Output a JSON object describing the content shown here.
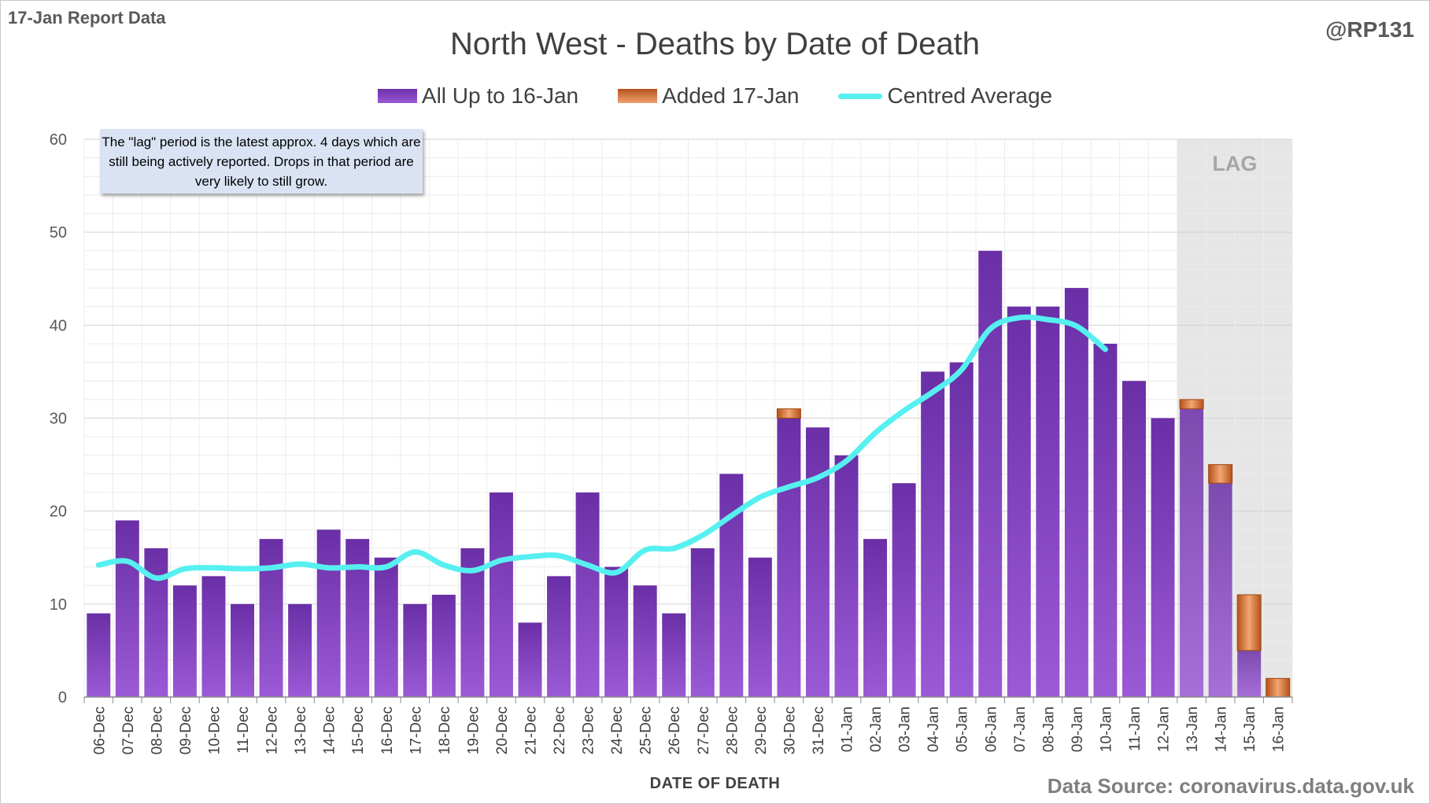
{
  "header": {
    "report_label": "17-Jan Report Data",
    "author": "@RP131"
  },
  "note": "The \"lag\" period is the latest approx. 4 days which are still being actively reported. Drops in that period are very likely to still grow.",
  "source": "Data Source: coronavirus.data.gov.uk",
  "chart_data": {
    "type": "bar",
    "stacked": true,
    "title": "North West - Deaths by Date of Death",
    "xlabel": "DATE OF DEATH",
    "ylabel": "",
    "ylim": [
      0,
      60
    ],
    "yticks": [
      0,
      10,
      20,
      30,
      40,
      50,
      60
    ],
    "grid": true,
    "legend_position": "top",
    "categories": [
      "06-Dec",
      "07-Dec",
      "08-Dec",
      "09-Dec",
      "10-Dec",
      "11-Dec",
      "12-Dec",
      "13-Dec",
      "14-Dec",
      "15-Dec",
      "16-Dec",
      "17-Dec",
      "18-Dec",
      "19-Dec",
      "20-Dec",
      "21-Dec",
      "22-Dec",
      "23-Dec",
      "24-Dec",
      "25-Dec",
      "26-Dec",
      "27-Dec",
      "28-Dec",
      "29-Dec",
      "30-Dec",
      "31-Dec",
      "01-Jan",
      "02-Jan",
      "03-Jan",
      "04-Jan",
      "05-Jan",
      "06-Jan",
      "07-Jan",
      "08-Jan",
      "09-Jan",
      "10-Jan",
      "11-Jan",
      "12-Jan",
      "13-Jan",
      "14-Jan",
      "15-Jan",
      "16-Jan"
    ],
    "series": [
      {
        "name": "All Up to 16-Jan",
        "color": "#7b3cc0",
        "values": [
          9,
          19,
          16,
          12,
          13,
          10,
          17,
          10,
          18,
          17,
          15,
          10,
          11,
          16,
          22,
          8,
          13,
          22,
          14,
          12,
          9,
          16,
          24,
          15,
          30,
          29,
          26,
          17,
          23,
          35,
          36,
          48,
          42,
          42,
          44,
          38,
          34,
          30,
          31,
          23,
          5,
          0
        ]
      },
      {
        "name": "Added 17-Jan",
        "color": "#e07b3a",
        "values": [
          0,
          0,
          0,
          0,
          0,
          0,
          0,
          0,
          0,
          0,
          0,
          0,
          0,
          0,
          0,
          0,
          0,
          0,
          0,
          0,
          0,
          0,
          0,
          0,
          1,
          0,
          0,
          0,
          0,
          0,
          0,
          0,
          0,
          0,
          0,
          0,
          0,
          0,
          1,
          2,
          6,
          2
        ]
      },
      {
        "name": "Centred Average",
        "type": "line",
        "color": "#57f0f0",
        "values": [
          14.2,
          14.6,
          12.8,
          13.8,
          13.9,
          13.8,
          13.9,
          14.3,
          13.9,
          14.0,
          14.0,
          15.6,
          14.2,
          13.6,
          14.7,
          15.1,
          15.2,
          14.2,
          13.4,
          15.8,
          16.0,
          17.4,
          19.5,
          21.5,
          22.6,
          23.6,
          25.4,
          28.4,
          30.8,
          32.8,
          35.2,
          39.6,
          40.8,
          40.6,
          39.9,
          37.4,
          null,
          null,
          null,
          null,
          null,
          null
        ]
      }
    ],
    "lag_region": {
      "label": "LAG",
      "from": "13-Jan",
      "to": "16-Jan"
    }
  }
}
